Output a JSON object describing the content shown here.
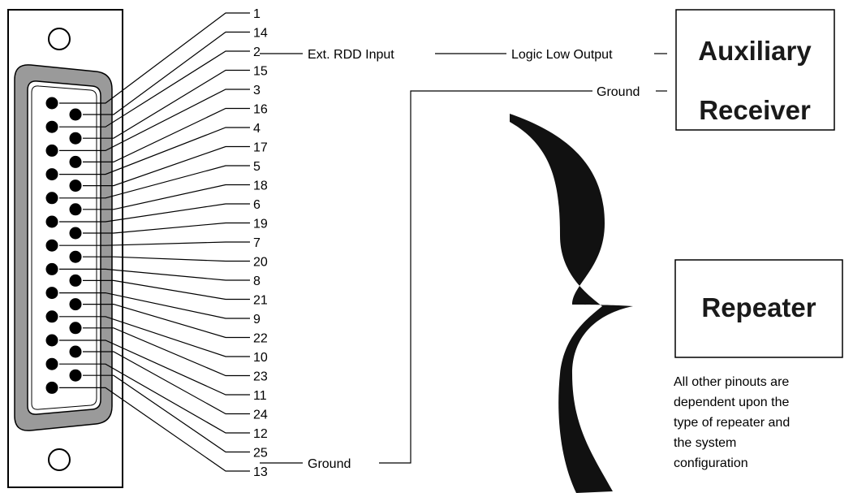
{
  "connector": {
    "left_column_pins": [
      "1",
      "2",
      "3",
      "4",
      "5",
      "6",
      "7",
      "8",
      "9",
      "10",
      "11",
      "12",
      "13"
    ],
    "right_column_pins": [
      "14",
      "15",
      "16",
      "17",
      "18",
      "19",
      "20",
      "21",
      "22",
      "23",
      "24",
      "25"
    ],
    "label_order": [
      "1",
      "14",
      "2",
      "15",
      "3",
      "16",
      "4",
      "17",
      "5",
      "18",
      "6",
      "19",
      "7",
      "20",
      "8",
      "21",
      "9",
      "22",
      "10",
      "23",
      "11",
      "24",
      "12",
      "25",
      "13"
    ]
  },
  "signals": {
    "pin2": "Ext. RDD Input",
    "pin25": "Ground"
  },
  "auxiliary_receiver": {
    "title_line1": "Auxiliary",
    "title_line2": "Receiver",
    "logic_output": "Logic Low Output",
    "ground": "Ground"
  },
  "repeater": {
    "title": "Repeater",
    "note_lines": [
      "All other pinouts are",
      "dependent upon the",
      "type of repeater and",
      "the system",
      "configuration"
    ]
  },
  "colors": {
    "shell_gray": "#9a9a9a",
    "ink": "#000000"
  }
}
